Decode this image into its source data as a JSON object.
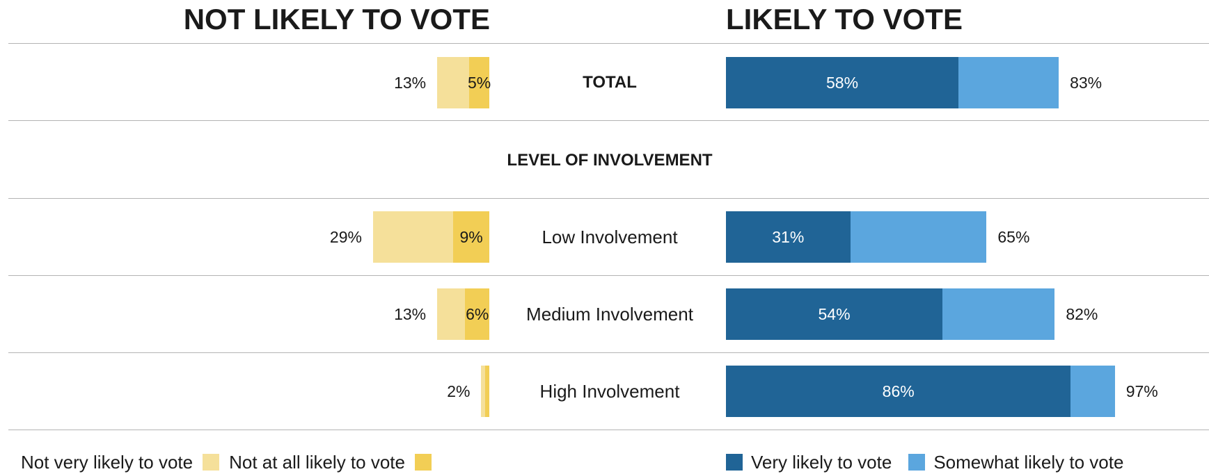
{
  "headings": {
    "left": "NOT LIKELY TO VOTE",
    "right": "LIKELY TO VOTE"
  },
  "section_title": "LEVEL OF INVOLVEMENT",
  "colors": {
    "not_very_likely": "#f5e09a",
    "not_at_all_likely": "#f2ce55",
    "very_likely": "#206496",
    "somewhat_likely": "#5ba6de"
  },
  "legend": {
    "not_very_likely": "Not very likely to vote",
    "not_at_all_likely": "Not at all likely to vote",
    "very_likely": "Very likely to vote",
    "somewhat_likely": "Somewhat likely to vote"
  },
  "chart_data": {
    "type": "bar",
    "orientation": "horizontal-diverging",
    "categories": [
      "TOTAL",
      "Low Involvement",
      "Medium Involvement",
      "High Involvement"
    ],
    "series": [
      {
        "name": "Not very likely to vote",
        "values": [
          8,
          20,
          7,
          1
        ],
        "side": "left"
      },
      {
        "name": "Not at all likely to vote",
        "values": [
          5,
          9,
          6,
          1
        ],
        "side": "left"
      },
      {
        "name": "Very likely to vote",
        "values": [
          58,
          31,
          54,
          86
        ],
        "side": "right"
      },
      {
        "name": "Somewhat likely to vote",
        "values": [
          25,
          34,
          28,
          11
        ],
        "side": "right"
      }
    ],
    "labels": {
      "not_likely_total": [
        "13%",
        "29%",
        "13%",
        "2%"
      ],
      "not_at_all_likely": [
        "5%",
        "9%",
        "6%",
        ""
      ],
      "very_likely": [
        "58%",
        "31%",
        "54%",
        "86%"
      ],
      "likely_total": [
        "83%",
        "65%",
        "82%",
        "97%"
      ]
    },
    "legend_placement": "bottom",
    "grid": false
  }
}
